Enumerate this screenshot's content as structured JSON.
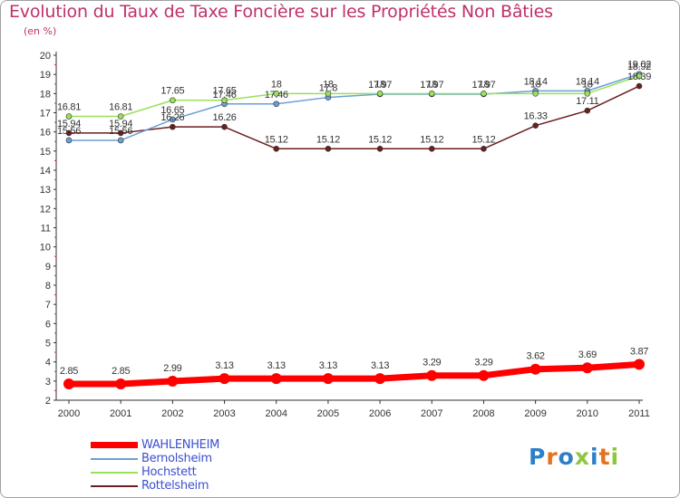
{
  "title": "Evolution du Taux de Taxe Foncière sur les Propriétés Non Bâties",
  "subtitle": "(en %)",
  "logo": "Proxiti",
  "colors": {
    "title": "#c0306a",
    "legend_text": "#3b4fd0",
    "WAHLENHEIM": "#ff0000",
    "Bernolsheim": "#6a9fd8",
    "Hochstett": "#9ae05a",
    "Rottelsheim": "#6b1f1f"
  },
  "chart_data": {
    "type": "line",
    "title": "Evolution du Taux de Taxe Foncière sur les Propriétés Non Bâties",
    "ylabel": "(en %)",
    "xlabel": "",
    "x": [
      "2000",
      "2001",
      "2002",
      "2003",
      "2004",
      "2005",
      "2006",
      "2007",
      "2008",
      "2009",
      "2010",
      "2011"
    ],
    "ylim": [
      2,
      20
    ],
    "yticks": [
      "2",
      "3",
      "4",
      "5",
      "6",
      "7",
      "8",
      "9",
      "10",
      "11",
      "12",
      "13",
      "14",
      "15",
      "16",
      "17",
      "18",
      "19",
      "20"
    ],
    "grid": false,
    "legend_position": "bottom-left",
    "series": [
      {
        "name": "WAHLENHEIM",
        "color": "#ff0000",
        "width": 7,
        "marker": 6,
        "values": [
          2.85,
          2.85,
          2.99,
          3.13,
          3.13,
          3.13,
          3.13,
          3.29,
          3.29,
          3.62,
          3.69,
          3.87
        ],
        "labels": [
          "2.85",
          "2.85",
          "2.99",
          "3.13",
          "3.13",
          "3.13",
          "3.13",
          "3.29",
          "3.29",
          "3.62",
          "3.69",
          "3.87"
        ]
      },
      {
        "name": "Bernolsheim",
        "color": "#6a9fd8",
        "width": 1.5,
        "marker": 3,
        "values": [
          15.56,
          15.56,
          16.65,
          17.46,
          17.46,
          17.8,
          17.97,
          17.97,
          17.97,
          18.14,
          18.14,
          19.02
        ],
        "labels": [
          "15.56",
          "15.56",
          "16.65",
          "17.46",
          "17.46",
          "17.8",
          "17.97",
          "17.97",
          "17.97",
          "18.14",
          "18.14",
          "19.02"
        ]
      },
      {
        "name": "Hochstett",
        "color": "#9ae05a",
        "width": 1.5,
        "marker": 3,
        "values": [
          16.81,
          16.81,
          17.65,
          17.65,
          18,
          18,
          18,
          18,
          18,
          18,
          18,
          18.92
        ],
        "labels": [
          "16.81",
          "16.81",
          "17.65",
          "17.65",
          "18",
          "18",
          "18",
          "18",
          "18",
          "18",
          "18",
          "18.92"
        ]
      },
      {
        "name": "Rottelsheim",
        "color": "#6b1f1f",
        "width": 1.5,
        "marker": 3,
        "values": [
          15.94,
          15.94,
          16.26,
          16.26,
          15.12,
          15.12,
          15.12,
          15.12,
          15.12,
          16.33,
          17.11,
          18.39
        ],
        "labels": [
          "15.94",
          "15.94",
          "16.26",
          "16.26",
          "15.12",
          "15.12",
          "15.12",
          "15.12",
          "15.12",
          "16.33",
          "17.11",
          "18.39"
        ]
      }
    ]
  }
}
